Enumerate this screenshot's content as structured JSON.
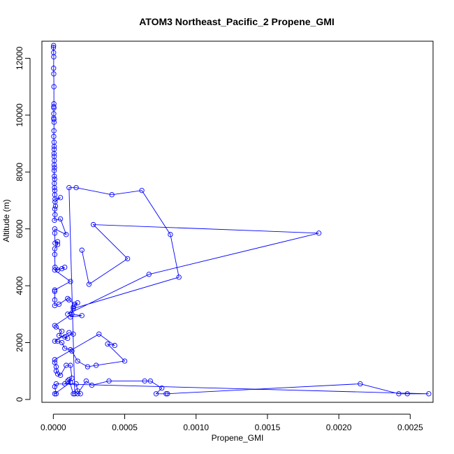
{
  "chart_data": {
    "type": "line",
    "title": "ATOM3 Northeast_Pacific_2 Propene_GMI",
    "xlabel": "Propene_GMI",
    "ylabel": "Altitude (m)",
    "xlim": [
      -8e-05,
      0.00266
    ],
    "ylim": [
      -100,
      12600
    ],
    "x_ticks": [
      0.0,
      0.0005,
      0.001,
      0.0015,
      0.002,
      0.0025
    ],
    "x_tick_labels": [
      "0.0000",
      "0.0005",
      "0.0010",
      "0.0015",
      "0.0020",
      "0.0025"
    ],
    "y_ticks": [
      0,
      2000,
      4000,
      6000,
      8000,
      10000,
      12000
    ],
    "y_tick_labels": [
      "0",
      "2000",
      "4000",
      "6000",
      "8000",
      "10000",
      "12000"
    ],
    "grid": false,
    "legend": "none",
    "series_color": "#0000ff",
    "series": [
      {
        "marker": "open-circle",
        "points": [
          [
            2e-06,
            12450
          ],
          [
            1e-06,
            12380
          ],
          [
            2e-06,
            12200
          ],
          [
            3e-06,
            12050
          ],
          [
            2e-06,
            11650
          ],
          [
            3e-06,
            11450
          ],
          [
            4e-06,
            11000
          ],
          [
            4e-06,
            10400
          ],
          [
            3e-06,
            10300
          ],
          [
            4e-06,
            10250
          ],
          [
            3e-06,
            10050
          ],
          [
            3e-06,
            9900
          ],
          [
            4e-06,
            9850
          ],
          [
            5e-06,
            9750
          ],
          [
            4e-06,
            9450
          ],
          [
            3e-06,
            9250
          ],
          [
            5e-06,
            9050
          ],
          [
            6e-06,
            8900
          ],
          [
            6e-06,
            8800
          ],
          [
            5e-06,
            8650
          ],
          [
            6e-06,
            8550
          ],
          [
            7e-06,
            8400
          ],
          [
            6e-06,
            8250
          ],
          [
            8e-06,
            8150
          ],
          [
            6e-06,
            8050
          ],
          [
            7e-06,
            7850
          ],
          [
            9e-06,
            7750
          ],
          [
            7e-06,
            7600
          ],
          [
            8e-06,
            7450
          ],
          [
            1e-05,
            7350
          ],
          [
            1e-05,
            7200
          ],
          [
            1.2e-05,
            7050
          ],
          [
            5e-05,
            7100
          ],
          [
            1.2e-05,
            6950
          ],
          [
            1.5e-05,
            6800
          ],
          [
            1e-05,
            6700
          ],
          [
            1.2e-05,
            6500
          ],
          [
            8e-06,
            6300
          ],
          [
            5e-05,
            6350
          ],
          [
            9e-05,
            5800
          ],
          [
            1e-05,
            6000
          ],
          [
            1e-05,
            5850
          ],
          [
            1.2e-05,
            5500
          ],
          [
            3e-05,
            5550
          ],
          [
            3e-05,
            5450
          ],
          [
            1e-05,
            5300
          ],
          [
            1e-05,
            5100
          ],
          [
            1.2e-05,
            4650
          ],
          [
            3e-05,
            4550
          ],
          [
            8e-05,
            4650
          ],
          [
            6e-05,
            4600
          ],
          [
            1e-05,
            4550
          ],
          [
            0.00012,
            4150
          ],
          [
            1e-05,
            3850
          ],
          [
            1e-05,
            3800
          ],
          [
            1e-05,
            3500
          ],
          [
            1e-05,
            3300
          ],
          [
            4e-05,
            3350
          ],
          [
            0.0001,
            3550
          ],
          [
            0.00011,
            3500
          ],
          [
            0.00015,
            3350
          ],
          [
            0.00017,
            3400
          ],
          [
            0.00014,
            3250
          ],
          [
            0.00012,
            2900
          ],
          [
            0.0002,
            2950
          ],
          [
            0.00013,
            3000
          ],
          [
            1e-05,
            2600
          ],
          [
            2e-05,
            2550
          ],
          [
            6e-05,
            2400
          ],
          [
            4e-05,
            2250
          ],
          [
            0.0001,
            2150
          ],
          [
            8e-05,
            2200
          ],
          [
            0.00014,
            2300
          ],
          [
            0.00011,
            2350
          ],
          [
            1e-05,
            2050
          ],
          [
            3e-05,
            2050
          ],
          [
            6e-05,
            2000
          ],
          [
            8e-05,
            1800
          ],
          [
            0.00012,
            1750
          ],
          [
            0.00013,
            1700
          ],
          [
            0.00017,
            1350
          ],
          [
            0.00024,
            1150
          ],
          [
            0.0003,
            1200
          ],
          [
            0.0005,
            1350
          ],
          [
            0.00038,
            1950
          ],
          [
            0.00043,
            1900
          ],
          [
            0.00032,
            2300
          ],
          [
            1e-05,
            1400
          ],
          [
            1e-05,
            1300
          ],
          [
            2e-05,
            1150
          ],
          [
            2e-05,
            1000
          ],
          [
            3e-05,
            900
          ],
          [
            5e-05,
            850
          ],
          [
            9e-05,
            1200
          ],
          [
            0.00012,
            1200
          ],
          [
            0.00013,
            750
          ],
          [
            0.0001,
            650
          ],
          [
            8e-05,
            550
          ],
          [
            0.00016,
            550
          ],
          [
            0.00017,
            300
          ],
          [
            0.00019,
            200
          ],
          [
            0.00017,
            200
          ],
          [
            0.00023,
            650
          ],
          [
            0.00027,
            500
          ],
          [
            0.00039,
            650
          ],
          [
            0.00064,
            650
          ],
          [
            0.00068,
            650
          ],
          [
            0.00076,
            400
          ],
          [
            0.00072,
            200
          ],
          [
            0.0008,
            200
          ],
          [
            0.00079,
            200
          ],
          [
            0.00215,
            550
          ],
          [
            0.00242,
            200
          ],
          [
            0.00248,
            200
          ],
          [
            0.00263,
            200
          ],
          [
            2e-05,
            550
          ],
          [
            1e-05,
            450
          ],
          [
            2e-05,
            200
          ],
          [
            1e-05,
            200
          ],
          [
            0.00012,
            600
          ],
          [
            0.00011,
            700
          ],
          [
            0.00014,
            200
          ],
          [
            0.00015,
            200
          ],
          [
            0.00011,
            7450
          ],
          [
            0.00016,
            7450
          ],
          [
            0.00041,
            7200
          ],
          [
            0.00062,
            7350
          ],
          [
            0.00082,
            5800
          ],
          [
            0.00088,
            4300
          ],
          [
            0.00014,
            3200
          ],
          [
            0.0001,
            3000
          ],
          [
            0.00067,
            4400
          ],
          [
            0.00186,
            5850
          ],
          [
            0.00028,
            6150
          ],
          [
            0.00052,
            4950
          ],
          [
            0.00025,
            4050
          ],
          [
            0.0002,
            5250
          ]
        ]
      }
    ]
  }
}
